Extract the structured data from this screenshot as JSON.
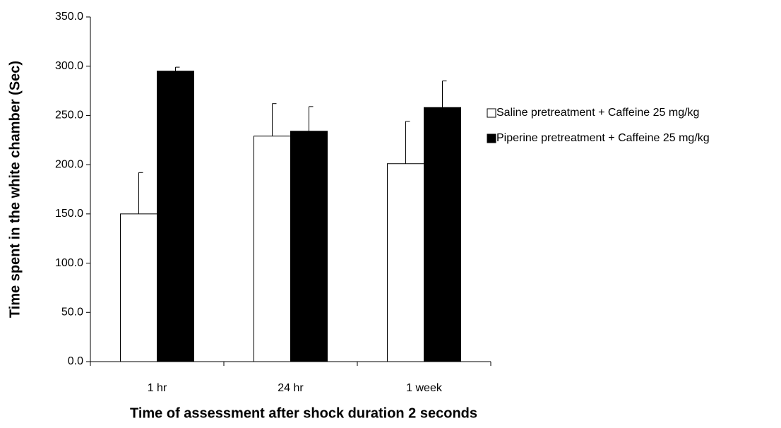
{
  "chart_data": {
    "type": "bar",
    "x_label": "Time of assessment after shock duration 2 seconds",
    "y_label": "Time spent in the white chamber (Sec)",
    "categories": [
      "1 hr",
      "24 hr",
      "1 week"
    ],
    "series": [
      {
        "name": "Saline pretreatment + Caffeine 25 mg/kg",
        "color": "#ffffff",
        "values": [
          150,
          229,
          201
        ],
        "errors": [
          42,
          33,
          43
        ]
      },
      {
        "name": "Piperine pretreatment + Caffeine 25 mg/kg",
        "color": "#000000",
        "values": [
          295,
          234,
          258
        ],
        "errors": [
          4,
          25,
          27
        ]
      }
    ],
    "ylim": [
      0,
      350
    ],
    "yticks": [
      {
        "value": 0,
        "label": "0.0"
      },
      {
        "value": 50,
        "label": "50.0"
      },
      {
        "value": 100,
        "label": "100.0"
      },
      {
        "value": 150,
        "label": "150.0"
      },
      {
        "value": 200,
        "label": "200.0"
      },
      {
        "value": 250,
        "label": "250.0"
      },
      {
        "value": 300,
        "label": "300.0"
      },
      {
        "value": 350,
        "label": "350.0"
      }
    ],
    "grid": false,
    "legend": "right"
  }
}
